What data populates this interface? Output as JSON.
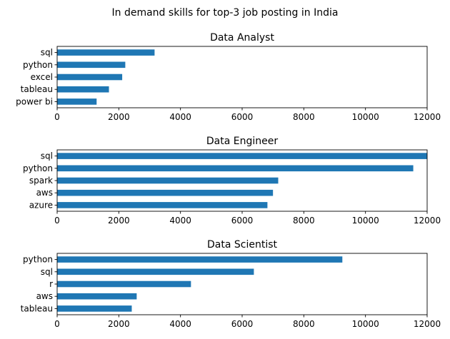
{
  "figure": {
    "title": "In demand skills for top-3 job posting in India"
  },
  "chart_data": [
    {
      "type": "bar",
      "orientation": "horizontal",
      "title": "Data Analyst",
      "categories": [
        "sql",
        "python",
        "excel",
        "tableau",
        "power bi"
      ],
      "values": [
        3160,
        2210,
        2110,
        1680,
        1280
      ],
      "xlim": [
        0,
        12000
      ],
      "xticks": [
        0,
        2000,
        4000,
        6000,
        8000,
        10000,
        12000
      ],
      "xlabel": "",
      "ylabel": "",
      "grid": false,
      "bar_color": "#1f77b4"
    },
    {
      "type": "bar",
      "orientation": "horizontal",
      "title": "Data Engineer",
      "categories": [
        "sql",
        "python",
        "spark",
        "aws",
        "azure"
      ],
      "values": [
        12000,
        11550,
        7170,
        7000,
        6820
      ],
      "xlim": [
        0,
        12000
      ],
      "xticks": [
        0,
        2000,
        4000,
        6000,
        8000,
        10000,
        12000
      ],
      "xlabel": "",
      "ylabel": "",
      "grid": false,
      "bar_color": "#1f77b4"
    },
    {
      "type": "bar",
      "orientation": "horizontal",
      "title": "Data Scientist",
      "categories": [
        "python",
        "sql",
        "r",
        "aws",
        "tableau"
      ],
      "values": [
        9250,
        6380,
        4340,
        2580,
        2420
      ],
      "xlim": [
        0,
        12000
      ],
      "xticks": [
        0,
        2000,
        4000,
        6000,
        8000,
        10000,
        12000
      ],
      "xlabel": "",
      "ylabel": "",
      "grid": false,
      "bar_color": "#1f77b4"
    }
  ]
}
